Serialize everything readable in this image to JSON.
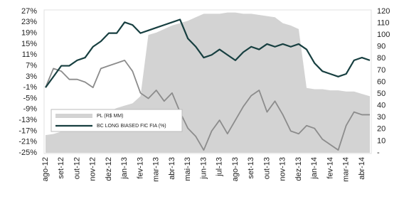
{
  "chart_data": {
    "type": "line",
    "categories": [
      "ago-12",
      null,
      "set-12",
      null,
      "out-12",
      null,
      "nov-12",
      null,
      "dez-12",
      null,
      "jan-13",
      null,
      "fev-13",
      null,
      "mar-13",
      null,
      "abr-13",
      null,
      "mai-13",
      null,
      "jun-13",
      null,
      "jul-13",
      null,
      "ago-13",
      null,
      "set-13",
      null,
      "out-13",
      null,
      "nov-13",
      null,
      "dez-13",
      null,
      "jan-14",
      null,
      "fev-14",
      null,
      "mar-14",
      null,
      "abr-14",
      null
    ],
    "series": [
      {
        "name": "PL (R$ MM)",
        "color": "#d3d3d3",
        "kind": "area",
        "axis": "y2",
        "values": [
          15,
          16,
          18,
          22,
          25,
          28,
          30,
          32,
          35,
          38,
          40,
          42,
          48,
          100,
          102,
          105,
          108,
          110,
          112,
          115,
          118,
          118,
          118,
          119,
          119,
          118,
          118,
          117,
          116,
          115,
          110,
          108,
          105,
          55,
          54,
          54,
          53,
          53,
          52,
          52,
          50,
          48
        ]
      },
      {
        "name": "BC LONG BIASED FIC FIA (%)",
        "color": "#173f40",
        "kind": "line",
        "values": [
          -1,
          3,
          7,
          7,
          9,
          10,
          14,
          16,
          19,
          19,
          23,
          22,
          19,
          20,
          21,
          22,
          23,
          24,
          17,
          14,
          10,
          11,
          13,
          11,
          9,
          12,
          14,
          13,
          15,
          14,
          15,
          14,
          15,
          13,
          8,
          5,
          4,
          3,
          4,
          9,
          10,
          9
        ]
      },
      {
        "color": "#8c8c8c",
        "kind": "line",
        "values": [
          -1,
          6,
          5,
          2,
          2,
          1,
          -1,
          6,
          7,
          8,
          9,
          5,
          -3,
          -5,
          -2,
          -6,
          -3,
          -10,
          -16,
          -19,
          -24,
          -17,
          -13,
          -18,
          -13,
          -8,
          -4,
          -2,
          -10,
          -6,
          -11,
          -17,
          -18,
          -15,
          -16,
          -20,
          -22,
          -24,
          -15,
          -10,
          -11,
          -11
        ]
      }
    ],
    "ylim": [
      -25,
      27
    ],
    "yticks": [
      {
        "value": -25,
        "label": "-25%"
      },
      {
        "value": -21,
        "label": "-21%"
      },
      {
        "value": -17,
        "label": "-17%"
      },
      {
        "value": -13,
        "label": "-13%"
      },
      {
        "value": -9,
        "label": "-9%"
      },
      {
        "value": -5,
        "label": "-5%"
      },
      {
        "value": -1,
        "label": "-1%"
      },
      {
        "value": 3,
        "label": "3%"
      },
      {
        "value": 7,
        "label": "7%"
      },
      {
        "value": 11,
        "label": "11%"
      },
      {
        "value": 15,
        "label": "15%"
      },
      {
        "value": 19,
        "label": "19%"
      },
      {
        "value": 23,
        "label": "23%"
      },
      {
        "value": 27,
        "label": "27%"
      }
    ],
    "y2lim": [
      0,
      120
    ],
    "y2ticks": [
      {
        "value": 0,
        "label": "-"
      },
      10,
      20,
      30,
      40,
      50,
      60,
      70,
      80,
      90,
      100,
      110,
      120
    ]
  }
}
